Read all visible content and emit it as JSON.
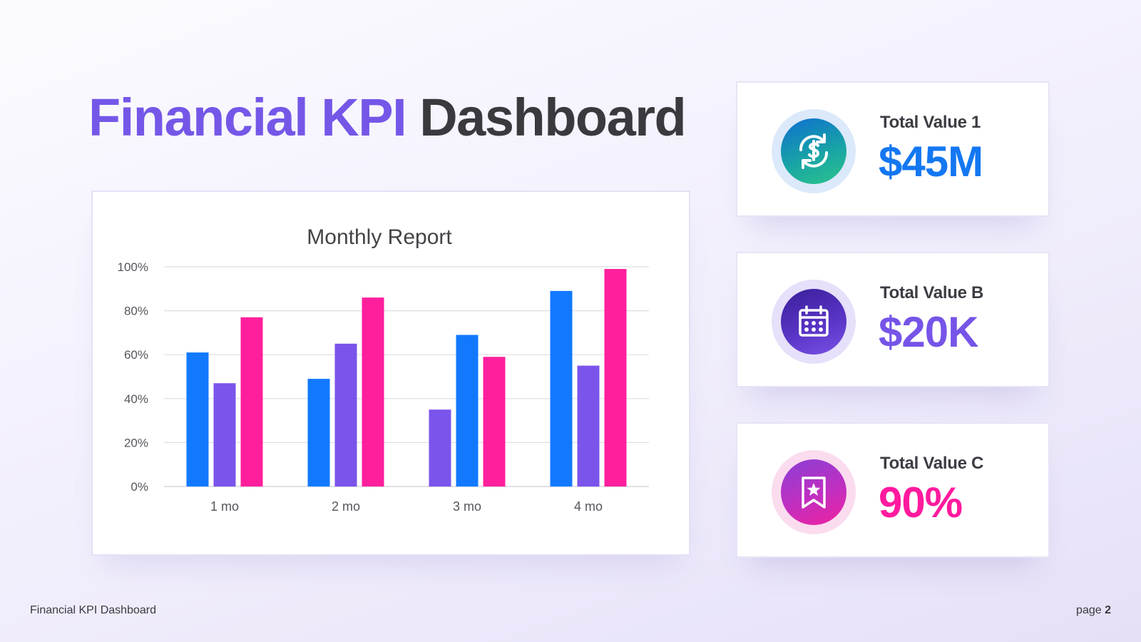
{
  "title": {
    "accent": "Financial KPI",
    "rest": "Dashboard"
  },
  "colors": {
    "accent": "#7557e8",
    "blue": "#1279ff",
    "purple": "#7b54eb",
    "pink": "#ff1f9c"
  },
  "chart_data": {
    "type": "bar",
    "title": "Monthly Report",
    "categories": [
      "1 mo",
      "2 mo",
      "3 mo",
      "4 mo"
    ],
    "series": [
      {
        "values": [
          61,
          49,
          35,
          89
        ],
        "color_order": [
          "blue",
          "blue",
          "purple",
          "blue"
        ]
      },
      {
        "values": [
          47,
          65,
          69,
          55
        ],
        "color_order": [
          "purple",
          "purple",
          "blue",
          "purple"
        ]
      },
      {
        "values": [
          77,
          86,
          59,
          99
        ],
        "color_order": [
          "pink",
          "pink",
          "pink",
          "pink"
        ]
      }
    ],
    "y_ticks": [
      "0%",
      "20%",
      "40%",
      "60%",
      "80%",
      "100%"
    ],
    "ylim": [
      0,
      100
    ],
    "grid": true,
    "legend": "none"
  },
  "kpis": [
    {
      "label": "Total Value 1",
      "value": "$45M",
      "color": "#1477f2",
      "icon": "dollar-exchange-icon"
    },
    {
      "label": "Total Value B",
      "value": "$20K",
      "color": "#7654e8",
      "icon": "calendar-icon"
    },
    {
      "label": "Total Value C",
      "value": "90%",
      "color": "#ff1a9e",
      "icon": "star-bookmark-icon"
    }
  ],
  "footer": {
    "left": "Financial KPI Dashboard",
    "page_word": "page",
    "page_number": "2"
  }
}
